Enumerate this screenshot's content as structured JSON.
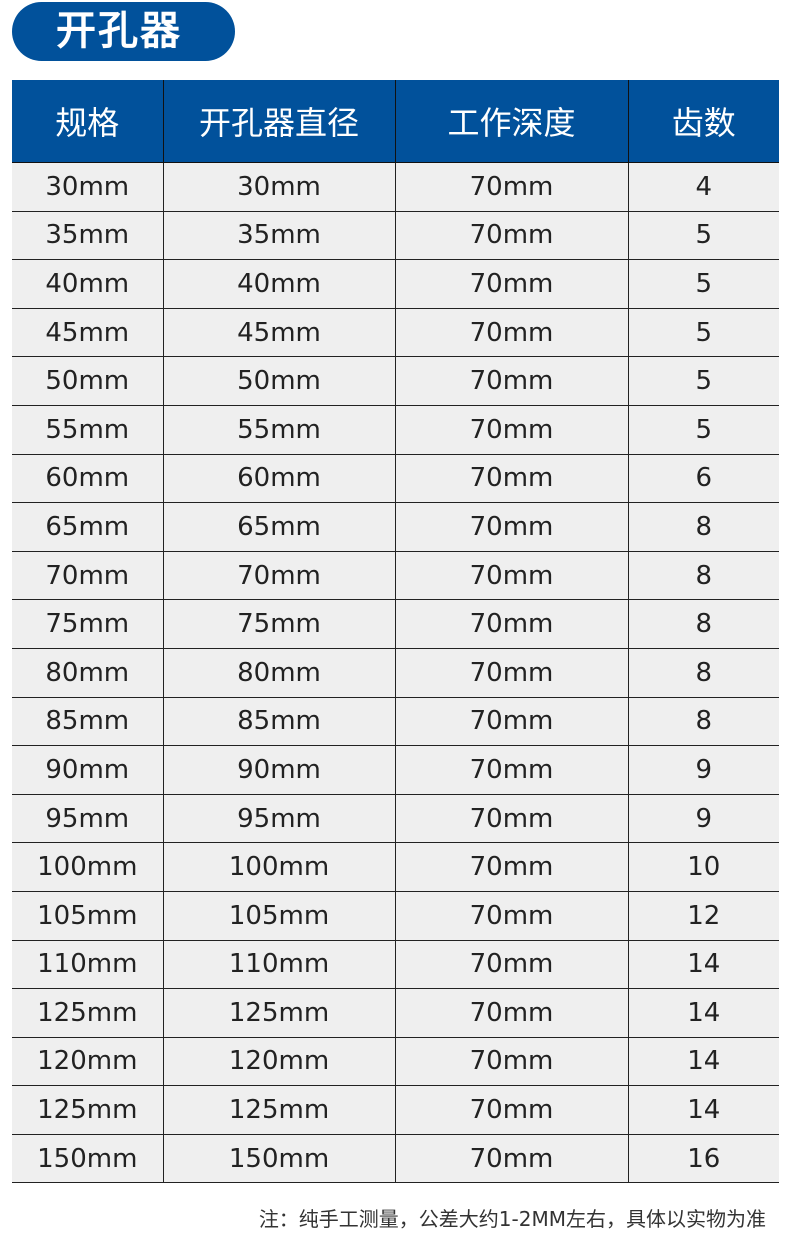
{
  "title": "开孔器",
  "table": {
    "headers": [
      "规格",
      "开孔器直径",
      "工作深度",
      "齿数"
    ],
    "rows": [
      [
        "30mm",
        "30mm",
        "70mm",
        "4"
      ],
      [
        "35mm",
        "35mm",
        "70mm",
        "5"
      ],
      [
        "40mm",
        "40mm",
        "70mm",
        "5"
      ],
      [
        "45mm",
        "45mm",
        "70mm",
        "5"
      ],
      [
        "50mm",
        "50mm",
        "70mm",
        "5"
      ],
      [
        "55mm",
        "55mm",
        "70mm",
        "5"
      ],
      [
        "60mm",
        "60mm",
        "70mm",
        "6"
      ],
      [
        "65mm",
        "65mm",
        "70mm",
        "8"
      ],
      [
        "70mm",
        "70mm",
        "70mm",
        "8"
      ],
      [
        "75mm",
        "75mm",
        "70mm",
        "8"
      ],
      [
        "80mm",
        "80mm",
        "70mm",
        "8"
      ],
      [
        "85mm",
        "85mm",
        "70mm",
        "8"
      ],
      [
        "90mm",
        "90mm",
        "70mm",
        "9"
      ],
      [
        "95mm",
        "95mm",
        "70mm",
        "9"
      ],
      [
        "100mm",
        "100mm",
        "70mm",
        "10"
      ],
      [
        "105mm",
        "105mm",
        "70mm",
        "12"
      ],
      [
        "110mm",
        "110mm",
        "70mm",
        "14"
      ],
      [
        "125mm",
        "125mm",
        "70mm",
        "14"
      ],
      [
        "120mm",
        "120mm",
        "70mm",
        "14"
      ],
      [
        "125mm",
        "125mm",
        "70mm",
        "14"
      ],
      [
        "150mm",
        "150mm",
        "70mm",
        "16"
      ]
    ]
  },
  "note": "注：纯手工测量，公差大约1-2MM左右，具体以实物为准",
  "colors": {
    "header": "#01519b",
    "row": "#efefef"
  }
}
